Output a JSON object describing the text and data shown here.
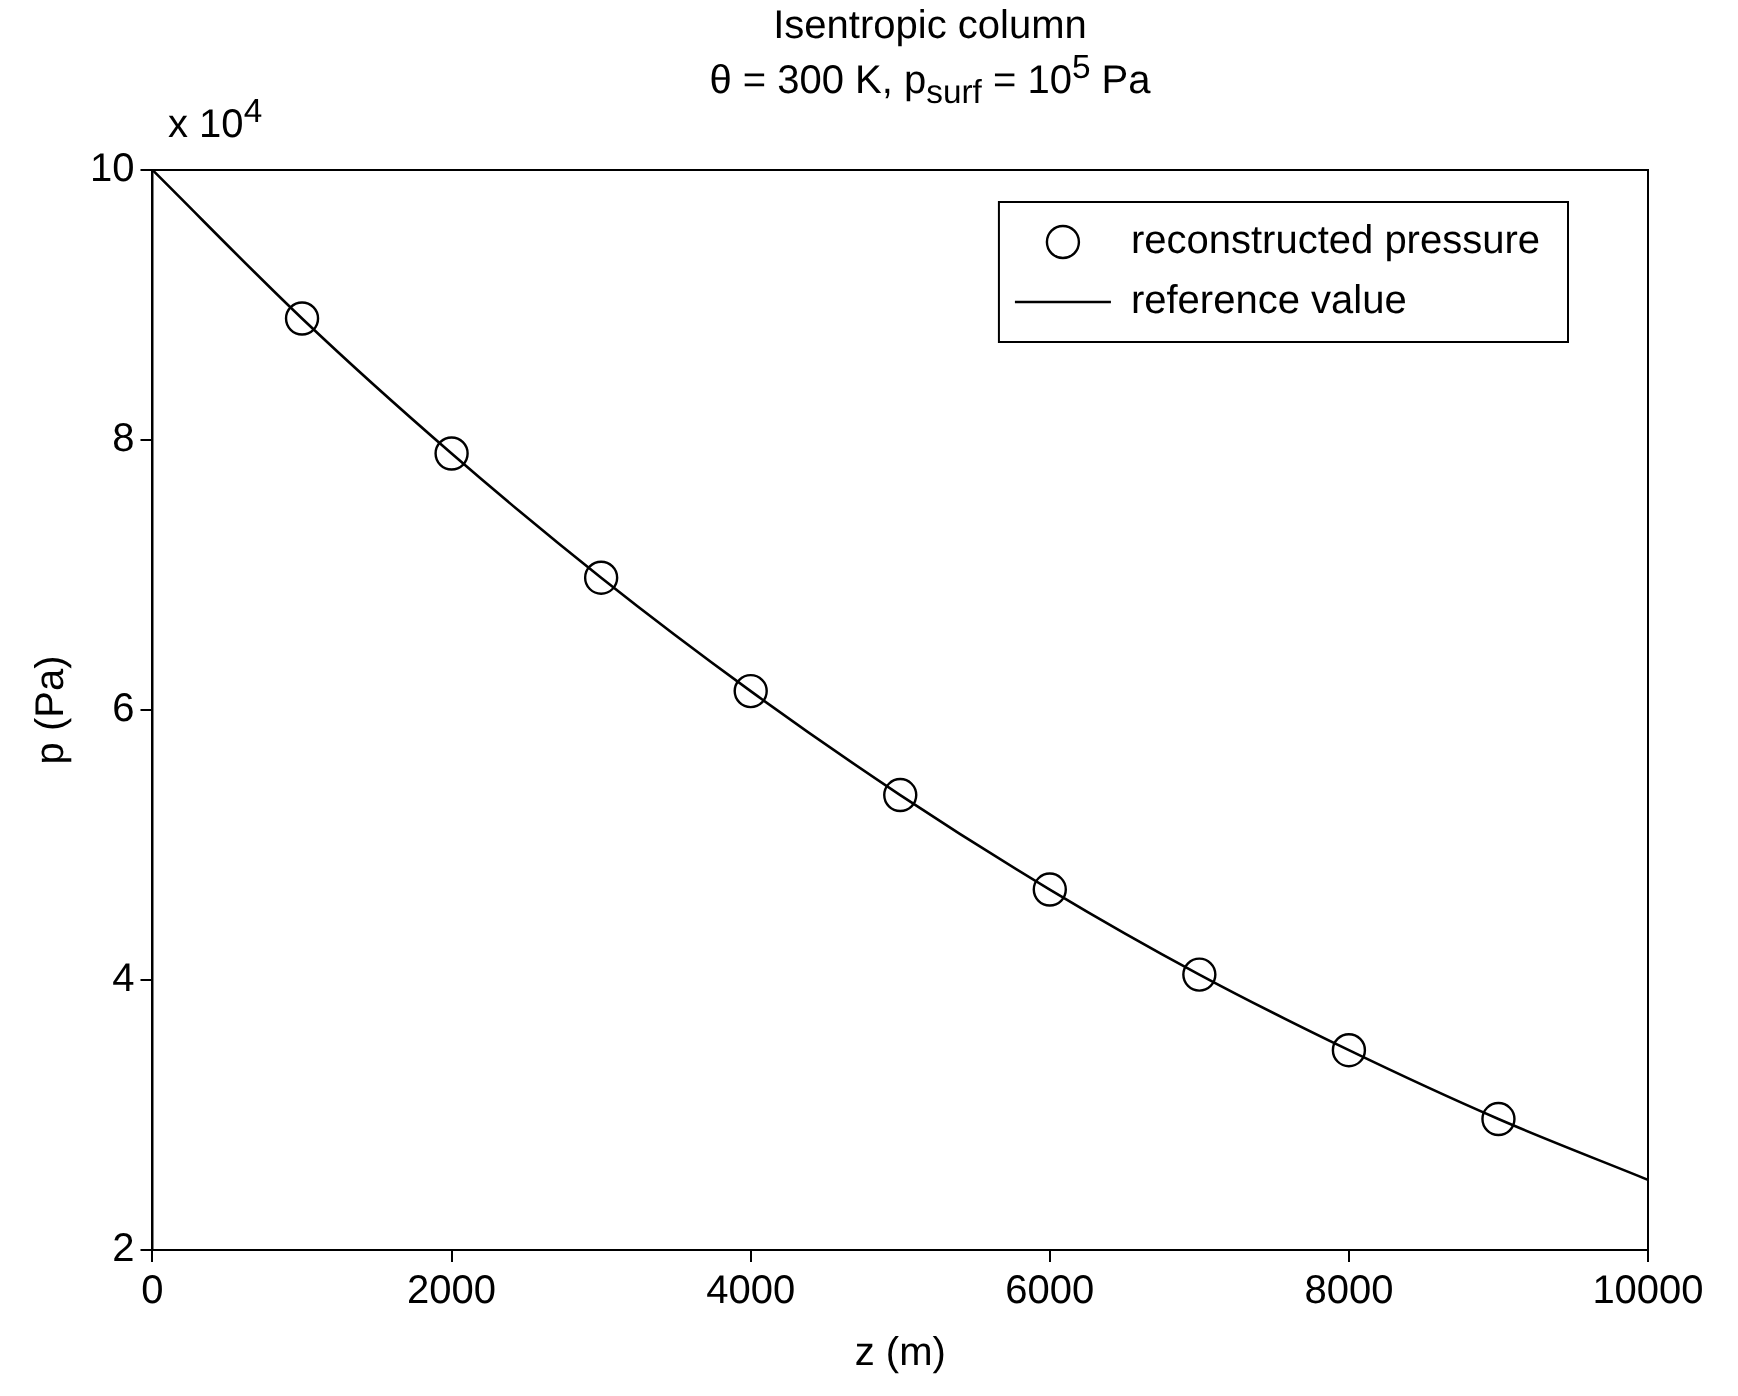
{
  "chart_data": {
    "type": "scatter",
    "title": "Isentropic column",
    "subtitle": "θ = 300 K, p$_{surf}$ = 10$^{5}$ Pa",
    "xlabel": "z (m)",
    "ylabel": "p (Pa)",
    "annotations": [
      "x 10$^{4}$"
    ],
    "xlim": [
      0,
      10000
    ],
    "xticks": [
      0,
      2000,
      4000,
      6000,
      8000,
      10000
    ],
    "ylim": [
      2,
      10
    ],
    "yticks": [
      2,
      4,
      6,
      8,
      10
    ],
    "grid": false,
    "legend": "top right",
    "marker": "circle",
    "series": [
      {
        "name": "reconstructed pressure",
        "type": "scatter",
        "color": "#000000",
        "x": [
          1000,
          2000,
          3000,
          4000,
          5000,
          6000,
          7000,
          8000,
          9000
        ],
        "values": [
          8.9,
          7.9,
          6.98,
          6.14,
          5.37,
          4.67,
          4.04,
          3.48,
          2.97
        ]
      },
      {
        "name": "reference value",
        "type": "line",
        "marker": "none",
        "line_style": "solid",
        "color": "#000000",
        "x": [
          0,
          1000,
          2000,
          3000,
          4000,
          5000,
          6000,
          7000,
          8000,
          9000,
          10000
        ],
        "values": [
          10.0,
          8.9,
          7.9,
          6.98,
          6.14,
          5.37,
          4.67,
          4.04,
          3.48,
          2.97,
          2.52
        ]
      }
    ]
  }
}
